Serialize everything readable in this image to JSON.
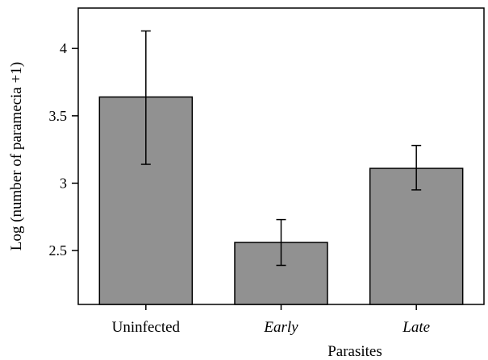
{
  "chart_data": {
    "type": "bar",
    "title": "",
    "xlabel": "Parasites",
    "ylabel": "Log (number of paramecia +1)",
    "categories": [
      "Uninfected",
      "Early",
      "Late"
    ],
    "category_italic": [
      false,
      true,
      true
    ],
    "values": [
      3.64,
      2.56,
      3.11
    ],
    "error_low": [
      3.14,
      2.39,
      2.95
    ],
    "error_high": [
      4.13,
      2.73,
      3.28
    ],
    "ylim": [
      2.1,
      4.3
    ],
    "yticks": [
      2.5,
      3,
      3.5,
      4
    ],
    "ytick_labels": [
      "2.5",
      "3",
      "3.5",
      "4"
    ],
    "bar_color": "#919191",
    "grid": false,
    "legend": "none"
  }
}
